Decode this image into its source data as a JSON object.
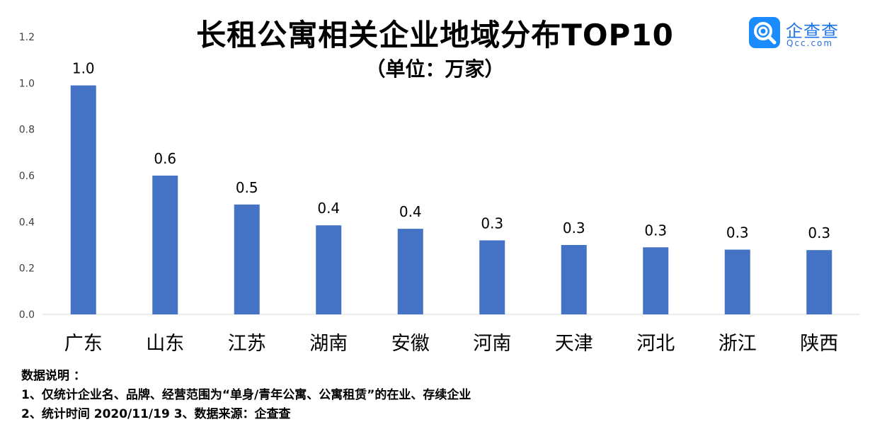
{
  "title": "长租公寓相关企业地域分布TOP10",
  "subtitle": "（单位：万家）",
  "logo": {
    "name": "企查查",
    "url": "Qcc.com",
    "icon": "magnifier-logo-icon",
    "color": "#1a8cff"
  },
  "notes": {
    "heading": "数据说明 ：",
    "line1": "1、仅统计企业名、品牌、经营范围为“单身/青年公寓、公寓租赁”的在业、存续企业",
    "line2": "2、统计时间  2020/11/19    3、数据来源：企查查"
  },
  "chart_data": {
    "type": "bar",
    "title": "长租公寓相关企业地域分布TOP10",
    "subtitle": "（单位：万家）",
    "categories": [
      "广东",
      "山东",
      "江苏",
      "湖南",
      "安徽",
      "河南",
      "天津",
      "河北",
      "浙江",
      "陕西"
    ],
    "values": [
      0.99,
      0.6,
      0.475,
      0.385,
      0.37,
      0.32,
      0.3,
      0.29,
      0.28,
      0.278
    ],
    "data_labels": [
      "1.0",
      "0.6",
      "0.5",
      "0.4",
      "0.4",
      "0.3",
      "0.3",
      "0.3",
      "0.3",
      "0.3"
    ],
    "ylim": [
      0,
      1.2
    ],
    "yticks": [
      "0.0",
      "0.2",
      "0.4",
      "0.6",
      "0.8",
      "1.0",
      "1.2"
    ],
    "xlabel": "",
    "ylabel": "",
    "grid": false,
    "bar_color": "#4472c4"
  }
}
